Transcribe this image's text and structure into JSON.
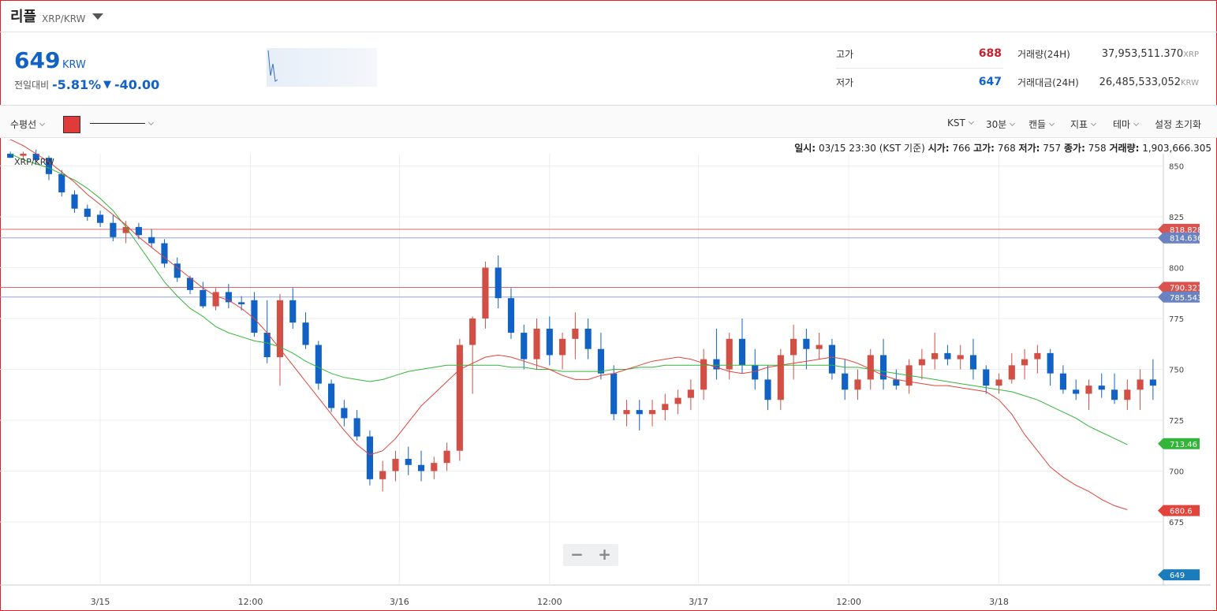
{
  "header": {
    "coin_name": "리플",
    "pair": "XRP/KRW"
  },
  "ticker": {
    "price": "649",
    "currency": "KRW",
    "change_label": "전일대비",
    "change_pct": "-5.81%",
    "change_arrow": "▼",
    "change_value": "-40.00"
  },
  "stats": {
    "high_label": "고가",
    "high_value": "688",
    "low_label": "저가",
    "low_value": "647",
    "volume_label": "거래량(24H)",
    "volume_value": "37,953,511.370",
    "volume_unit": "XRP",
    "amount_label": "거래대금(24H)",
    "amount_value": "26,485,533,052",
    "amount_unit": "KRW"
  },
  "toolbar": {
    "horizontal_line": "수평선",
    "tz": "KST",
    "interval": "30분",
    "chart_type": "캔들",
    "indicator": "지표",
    "theme": "테마",
    "reset": "설정 초기화",
    "line_color": "#e03a3a"
  },
  "info_line": {
    "time_label": "일시:",
    "time_value": "03/15 23:30 (KST 기준)",
    "open_label": "시가:",
    "open_value": "766",
    "high_label": "고가:",
    "high_value": "768",
    "low_label": "저가:",
    "low_value": "757",
    "close_label": "종가:",
    "close_value": "758",
    "vol_label": "거래량:",
    "vol_value": "1,903,666.305"
  },
  "zoom": {
    "minus": "−",
    "plus": "+"
  },
  "colors": {
    "up": "#d24f45",
    "down": "#1261c4",
    "ma_short": "#e0443a",
    "ma_long": "#34b53a",
    "hline_red": "#e06666",
    "hline_blue": "#8fa6d6"
  },
  "chart_data": {
    "type": "candlestick",
    "title": "XRP/KRW",
    "y_ticks": [
      850,
      825,
      800,
      775,
      750,
      725,
      700,
      675
    ],
    "x_ticks": [
      "3/15",
      "12:00",
      "3/16",
      "12:00",
      "3/17",
      "12:00",
      "3/18"
    ],
    "ylim": [
      644,
      856
    ],
    "horizontal_lines": [
      {
        "value": 818.828,
        "label": "818.828",
        "color": "red"
      },
      {
        "value": 814.636,
        "label": "814.636",
        "color": "blue"
      },
      {
        "value": 790.321,
        "label": "790.321",
        "color": "red"
      },
      {
        "value": 785.543,
        "label": "785.543",
        "color": "blue"
      }
    ],
    "price_tags": [
      {
        "value": 713.46,
        "label": "713.46",
        "color": "#34b53a"
      },
      {
        "value": 680.6,
        "label": "680.6",
        "color": "#e0443a"
      },
      {
        "value": 649,
        "label": "649",
        "color": "#1a7bbd"
      }
    ],
    "ma_short": [
      863,
      860,
      856,
      852,
      847,
      842,
      836,
      831,
      826,
      821,
      815,
      810,
      805,
      800,
      795,
      790,
      786,
      784,
      780,
      775,
      768,
      760,
      752,
      744,
      736,
      728,
      720,
      713,
      708,
      710,
      716,
      724,
      732,
      738,
      744,
      750,
      753,
      756,
      757,
      756,
      754,
      752,
      750,
      747,
      745,
      745,
      747,
      748,
      750,
      752,
      754,
      755,
      756,
      755,
      753,
      751,
      749,
      748,
      749,
      751,
      752,
      753,
      754,
      755,
      756,
      755,
      753,
      750,
      747,
      745,
      744,
      743,
      742,
      742,
      741,
      740,
      739,
      735,
      728,
      718,
      710,
      702,
      697,
      693,
      690,
      686,
      683,
      681
    ],
    "ma_long": [
      856,
      853,
      851,
      849,
      846,
      843,
      839,
      834,
      828,
      820,
      811,
      802,
      793,
      786,
      780,
      776,
      771,
      768,
      766,
      764,
      763,
      761,
      758,
      754,
      751,
      748,
      746,
      745,
      744,
      745,
      747,
      749,
      750,
      751,
      752,
      752,
      752,
      752,
      752,
      751,
      751,
      750,
      750,
      749,
      749,
      749,
      749,
      750,
      750,
      751,
      751,
      752,
      752,
      752,
      752,
      752,
      752,
      752,
      752,
      752,
      752,
      752,
      752,
      752,
      752,
      751,
      751,
      750,
      749,
      748,
      747,
      746,
      745,
      744,
      743,
      742,
      741,
      740,
      739,
      737,
      735,
      732,
      729,
      726,
      722,
      719,
      716,
      713
    ],
    "candles": [
      [
        856,
        857,
        854,
        854
      ],
      [
        855,
        857,
        853,
        856
      ],
      [
        856,
        858,
        852,
        853
      ],
      [
        854,
        855,
        843,
        846
      ],
      [
        846,
        848,
        835,
        837
      ],
      [
        836,
        838,
        827,
        829
      ],
      [
        829,
        831,
        823,
        825
      ],
      [
        826,
        828,
        820,
        822
      ],
      [
        822,
        826,
        813,
        815
      ],
      [
        817,
        823,
        812,
        820
      ],
      [
        820,
        822,
        814,
        816
      ],
      [
        815,
        819,
        810,
        812
      ],
      [
        812,
        814,
        800,
        802
      ],
      [
        802,
        805,
        793,
        795
      ],
      [
        795,
        796,
        787,
        789
      ],
      [
        789,
        793,
        780,
        781
      ],
      [
        781,
        790,
        779,
        788
      ],
      [
        788,
        792,
        780,
        783
      ],
      [
        783,
        786,
        779,
        782
      ],
      [
        784,
        788,
        766,
        768
      ],
      [
        768,
        784,
        753,
        756
      ],
      [
        756,
        787,
        742,
        784
      ],
      [
        784,
        790,
        770,
        773
      ],
      [
        773,
        778,
        760,
        762
      ],
      [
        762,
        764,
        740,
        743
      ],
      [
        743,
        745,
        729,
        731
      ],
      [
        731,
        735,
        722,
        726
      ],
      [
        726,
        730,
        715,
        717
      ],
      [
        717,
        720,
        693,
        696
      ],
      [
        696,
        705,
        690,
        700
      ],
      [
        700,
        710,
        695,
        706
      ],
      [
        706,
        712,
        698,
        703
      ],
      [
        703,
        710,
        695,
        700
      ],
      [
        700,
        707,
        696,
        704
      ],
      [
        704,
        714,
        700,
        710
      ],
      [
        710,
        765,
        705,
        762
      ],
      [
        762,
        776,
        738,
        775
      ],
      [
        775,
        803,
        770,
        800
      ],
      [
        800,
        806,
        780,
        785
      ],
      [
        785,
        790,
        765,
        768
      ],
      [
        768,
        772,
        750,
        755
      ],
      [
        755,
        775,
        750,
        770
      ],
      [
        770,
        776,
        752,
        757
      ],
      [
        757,
        768,
        750,
        765
      ],
      [
        765,
        778,
        755,
        770
      ],
      [
        770,
        775,
        755,
        760
      ],
      [
        760,
        768,
        745,
        748
      ],
      [
        748,
        752,
        725,
        728
      ],
      [
        728,
        735,
        722,
        730
      ],
      [
        730,
        735,
        720,
        728
      ],
      [
        728,
        735,
        722,
        730
      ],
      [
        730,
        738,
        725,
        733
      ],
      [
        733,
        740,
        728,
        736
      ],
      [
        736,
        745,
        730,
        740
      ],
      [
        740,
        760,
        735,
        755
      ],
      [
        755,
        770,
        745,
        750
      ],
      [
        750,
        768,
        745,
        765
      ],
      [
        765,
        775,
        748,
        752
      ],
      [
        752,
        760,
        740,
        745
      ],
      [
        745,
        752,
        730,
        735
      ],
      [
        735,
        760,
        730,
        757
      ],
      [
        757,
        772,
        745,
        765
      ],
      [
        765,
        770,
        750,
        760
      ],
      [
        760,
        768,
        755,
        762
      ],
      [
        762,
        765,
        745,
        748
      ],
      [
        748,
        755,
        735,
        740
      ],
      [
        740,
        750,
        735,
        745
      ],
      [
        745,
        760,
        740,
        757
      ],
      [
        757,
        765,
        740,
        745
      ],
      [
        745,
        750,
        740,
        742
      ],
      [
        742,
        755,
        738,
        752
      ],
      [
        752,
        760,
        745,
        755
      ],
      [
        755,
        768,
        750,
        758
      ],
      [
        758,
        762,
        752,
        755
      ],
      [
        755,
        762,
        750,
        757
      ],
      [
        757,
        765,
        745,
        750
      ],
      [
        750,
        752,
        738,
        742
      ],
      [
        742,
        748,
        738,
        745
      ],
      [
        745,
        758,
        743,
        752
      ],
      [
        752,
        760,
        745,
        755
      ],
      [
        755,
        762,
        748,
        758
      ],
      [
        758,
        760,
        742,
        748
      ],
      [
        748,
        752,
        738,
        740
      ],
      [
        740,
        745,
        735,
        738
      ],
      [
        738,
        745,
        730,
        742
      ],
      [
        742,
        748,
        736,
        740
      ],
      [
        740,
        748,
        733,
        735
      ],
      [
        735,
        745,
        730,
        740
      ],
      [
        740,
        750,
        730,
        745
      ],
      [
        745,
        755,
        735,
        742
      ]
    ]
  }
}
